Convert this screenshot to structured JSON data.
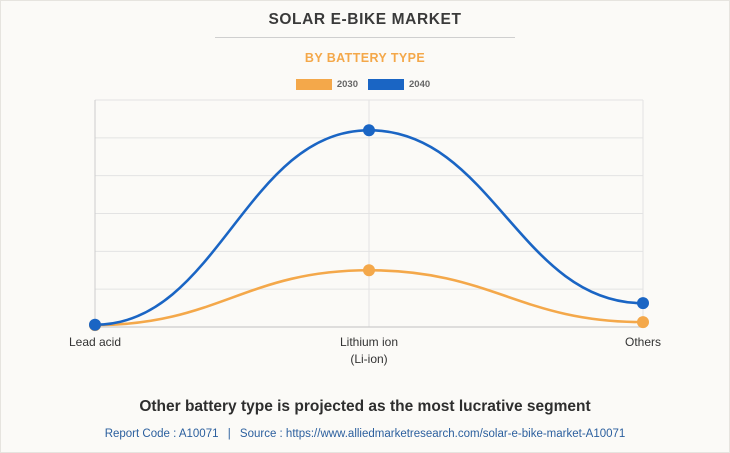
{
  "header": {
    "title": "SOLAR E-BIKE MARKET",
    "subtitle": "BY BATTERY TYPE"
  },
  "chart_data": {
    "type": "line",
    "smooth": true,
    "categories": [
      [
        "Lead acid"
      ],
      [
        "Lithium ion",
        "(Li-ion)"
      ],
      [
        "Others"
      ]
    ],
    "series": [
      {
        "name": "2030",
        "color": "#f4a84a",
        "values": [
          0.5,
          15.0,
          1.3
        ]
      },
      {
        "name": "2040",
        "color": "#1a65c4",
        "values": [
          0.6,
          52.0,
          6.3
        ]
      }
    ],
    "ylim": [
      0,
      60
    ],
    "grid": true,
    "legend": "top-center",
    "yticks_visible": false
  },
  "colors": {
    "subtitle": "#f4a84a",
    "grid": "#e3e3e3",
    "axis": "#cccccc",
    "footer_link": "#2b5f9e"
  },
  "caption": {
    "headline": "Other battery type is projected as the most lucrative segment",
    "report_code": "Report Code : A10071",
    "separator": "|",
    "source": "Source : https://www.alliedmarketresearch.com/solar-e-bike-market-A10071"
  }
}
